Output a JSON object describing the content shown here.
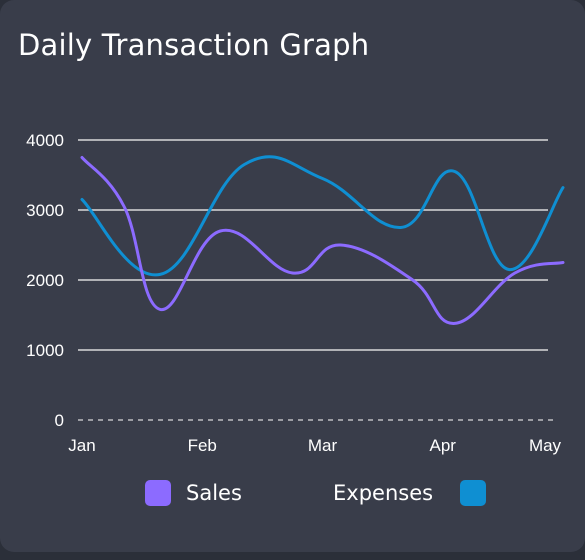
{
  "card": {
    "title": "Daily Transaction Graph"
  },
  "colors": {
    "background": "#393d4a",
    "sales": "#8c6bff",
    "expenses": "#0f8fd2",
    "grid": "#d9d9d9",
    "text": "#ffffff"
  },
  "chart_data": {
    "type": "line",
    "title": "Daily Transaction Graph",
    "xlabel": "",
    "ylabel": "",
    "categories": [
      "Jan",
      "Feb",
      "Mar",
      "Apr",
      "May"
    ],
    "x_range": [
      0,
      4
    ],
    "ylim": [
      0,
      4000
    ],
    "y_ticks": [
      "0",
      "1000",
      "2000",
      "3000",
      "4000"
    ],
    "grid": true,
    "legend_position": "bottom",
    "series": [
      {
        "name": "Sales",
        "color": "#8c6bff",
        "x": [
          0,
          0.35,
          0.65,
          1.15,
          1.75,
          2.15,
          2.75,
          3.1,
          3.6,
          4
        ],
        "values": [
          3750,
          3050,
          1580,
          2700,
          2100,
          2500,
          2000,
          1380,
          2100,
          2250
        ]
      },
      {
        "name": "Expenses",
        "color": "#0f8fd2",
        "x": [
          0,
          0.65,
          1.35,
          2.0,
          2.65,
          3.1,
          3.55,
          4
        ],
        "values": [
          3150,
          2080,
          3650,
          3450,
          2750,
          3550,
          2150,
          3320
        ]
      }
    ]
  }
}
